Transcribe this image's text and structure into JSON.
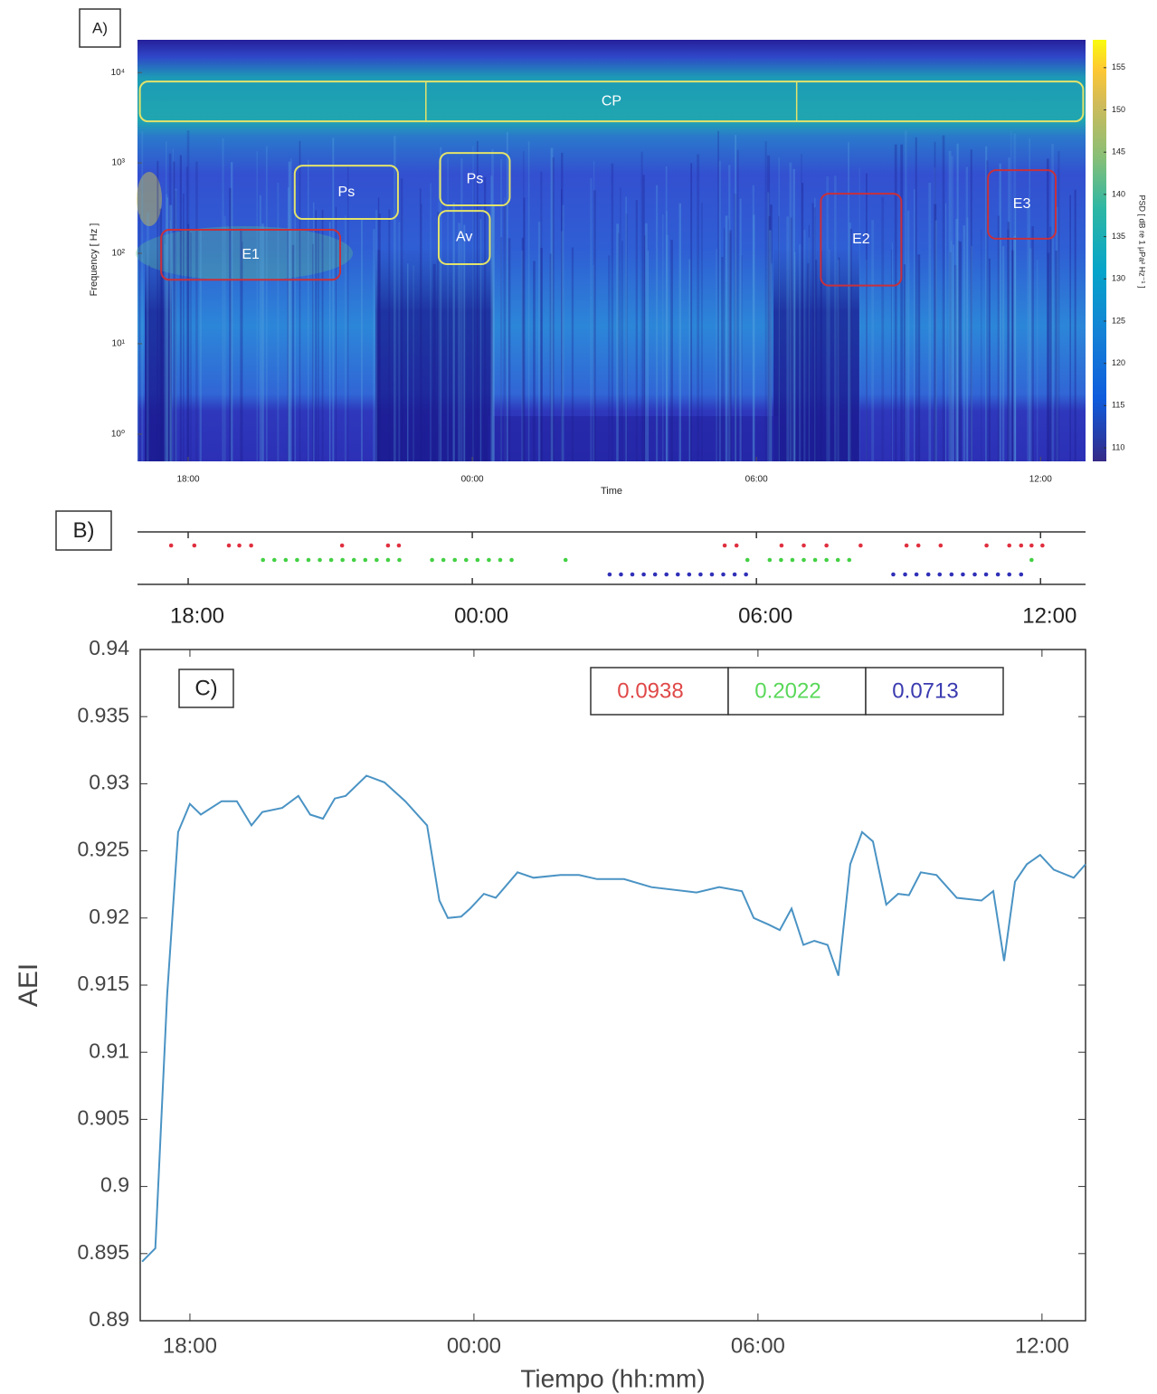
{
  "chart_data": [
    {
      "type": "heatmap",
      "panel_label": "A)",
      "xlabel": "Time",
      "ylabel": "Frequency [ Hz ]",
      "colorbar_label": "PSD [ dB re 1 μPa² Hz⁻¹ ]",
      "xlim": [
        16.93,
        36.95
      ],
      "xticks": [
        {
          "value": 18,
          "label": "18:00"
        },
        {
          "value": 24,
          "label": "00:00"
        },
        {
          "value": 30,
          "label": "06:00"
        },
        {
          "value": 36,
          "label": "12:00"
        }
      ],
      "ylim": [
        0.5,
        23000
      ],
      "y_scale": "log",
      "yticks": [
        {
          "value": 1,
          "label": "10⁰"
        },
        {
          "value": 10,
          "label": "10¹"
        },
        {
          "value": 100,
          "label": "10²"
        },
        {
          "value": 1000,
          "label": "10³"
        },
        {
          "value": 10000,
          "label": "10⁴"
        }
      ],
      "clim": [
        108.4,
        158.3
      ],
      "cticks": [
        110,
        115,
        120,
        125,
        130,
        135,
        140,
        145,
        150,
        155
      ],
      "regions": [
        {
          "label": "CP",
          "color": "#e3e36a",
          "x": [
            16.98,
            36.9
          ],
          "y": [
            2884,
            7943
          ],
          "dividers": [
            23.02,
            30.85
          ]
        },
        {
          "label": "Ps",
          "color": "#e3e36a",
          "x": [
            20.25,
            22.43
          ],
          "y": [
            240,
            933
          ]
        },
        {
          "label": "Ps",
          "color": "#e3e36a",
          "x": [
            23.32,
            24.79
          ],
          "y": [
            339,
            1288
          ]
        },
        {
          "label": "Av",
          "color": "#e3e36a",
          "x": [
            23.29,
            24.37
          ],
          "y": [
            76,
            295
          ]
        },
        {
          "label": "E1",
          "color": "#c8303c",
          "x": [
            17.43,
            21.21
          ],
          "y": [
            51,
            182
          ]
        },
        {
          "label": "E2",
          "color": "#c8303c",
          "x": [
            31.36,
            33.06
          ],
          "y": [
            44,
            457
          ]
        },
        {
          "label": "E3",
          "color": "#c8303c",
          "x": [
            34.89,
            36.32
          ],
          "y": [
            145,
            832
          ]
        }
      ]
    },
    {
      "type": "raster",
      "panel_label": "B)",
      "xlim": [
        16.93,
        36.95
      ],
      "xticks": [
        {
          "value": 18,
          "label": "18:00"
        },
        {
          "value": 24,
          "label": "00:00"
        },
        {
          "value": 30,
          "label": "06:00"
        },
        {
          "value": 36,
          "label": "12:00"
        }
      ],
      "series": [
        {
          "color": "#e03040",
          "x": [
            17.64,
            18.13,
            18.86,
            19.08,
            19.33,
            21.25,
            22.22,
            22.45,
            29.33,
            29.58,
            30.53,
            31.0,
            31.48,
            32.2,
            33.17,
            33.42,
            33.89,
            34.86,
            35.34,
            35.59,
            35.81,
            36.04
          ]
        },
        {
          "color": "#44d044",
          "x": [
            19.58,
            19.82,
            20.06,
            20.3,
            20.54,
            20.78,
            21.02,
            21.26,
            21.5,
            21.74,
            21.98,
            22.22,
            22.46,
            23.15,
            23.39,
            23.63,
            23.87,
            24.11,
            24.35,
            24.59,
            24.83,
            25.97,
            29.81,
            30.28,
            30.52,
            30.76,
            31.0,
            31.24,
            31.48,
            31.72,
            31.96,
            35.81
          ]
        },
        {
          "color": "#3030b8",
          "x": [
            26.9,
            27.14,
            27.38,
            27.62,
            27.86,
            28.1,
            28.34,
            28.58,
            28.82,
            29.06,
            29.3,
            29.54,
            29.78,
            32.89,
            33.14,
            33.38,
            33.63,
            33.87,
            34.12,
            34.36,
            34.61,
            34.85,
            35.1,
            35.34,
            35.59
          ]
        }
      ]
    },
    {
      "type": "line",
      "panel_label": "C)",
      "xlabel": "Tiempo (hh:mm)",
      "ylabel": "AEI",
      "xlim": [
        16.95,
        36.92
      ],
      "xticks": [
        {
          "value": 18,
          "label": "18:00"
        },
        {
          "value": 24,
          "label": "00:00"
        },
        {
          "value": 30,
          "label": "06:00"
        },
        {
          "value": 36,
          "label": "12:00"
        }
      ],
      "ylim": [
        0.89,
        0.94
      ],
      "yticks": [
        0.89,
        0.895,
        0.9,
        0.905,
        0.91,
        0.915,
        0.92,
        0.925,
        0.93,
        0.935,
        0.94
      ],
      "box_values": [
        0.0938,
        0.2022,
        0.0713
      ],
      "box_colors": [
        "#e04848",
        "#5ad85a",
        "#3a3ab0"
      ],
      "series": [
        {
          "color": "#4a93c4",
          "x": [
            16.99,
            17.27,
            17.52,
            17.75,
            18.0,
            18.23,
            18.67,
            18.99,
            19.3,
            19.53,
            19.95,
            20.29,
            20.54,
            20.81,
            21.06,
            21.29,
            21.73,
            22.11,
            22.55,
            23.01,
            23.27,
            23.45,
            23.73,
            23.92,
            24.21,
            24.46,
            24.92,
            25.26,
            25.83,
            26.22,
            26.6,
            27.17,
            27.75,
            28.7,
            29.18,
            29.66,
            29.91,
            30.23,
            30.46,
            30.71,
            30.96,
            31.19,
            31.47,
            31.7,
            31.95,
            32.2,
            32.43,
            32.71,
            32.96,
            33.19,
            33.44,
            33.77,
            34.2,
            34.72,
            34.97,
            35.2,
            35.43,
            35.68,
            35.96,
            36.25,
            36.67,
            36.92
          ],
          "values": [
            0.8944,
            0.8954,
            0.9143,
            0.9264,
            0.9285,
            0.9277,
            0.9287,
            0.9287,
            0.9269,
            0.9279,
            0.9282,
            0.9291,
            0.9277,
            0.9274,
            0.9289,
            0.9291,
            0.9306,
            0.9301,
            0.9287,
            0.9269,
            0.9213,
            0.92,
            0.9201,
            0.9207,
            0.9218,
            0.9215,
            0.9234,
            0.923,
            0.9232,
            0.9232,
            0.9229,
            0.9229,
            0.9223,
            0.9219,
            0.9223,
            0.922,
            0.92,
            0.9195,
            0.9191,
            0.9207,
            0.918,
            0.9183,
            0.918,
            0.9157,
            0.924,
            0.9264,
            0.9257,
            0.921,
            0.9218,
            0.9217,
            0.9234,
            0.9232,
            0.9215,
            0.9213,
            0.922,
            0.9168,
            0.9227,
            0.924,
            0.9247,
            0.9236,
            0.923,
            0.924
          ]
        }
      ]
    }
  ]
}
